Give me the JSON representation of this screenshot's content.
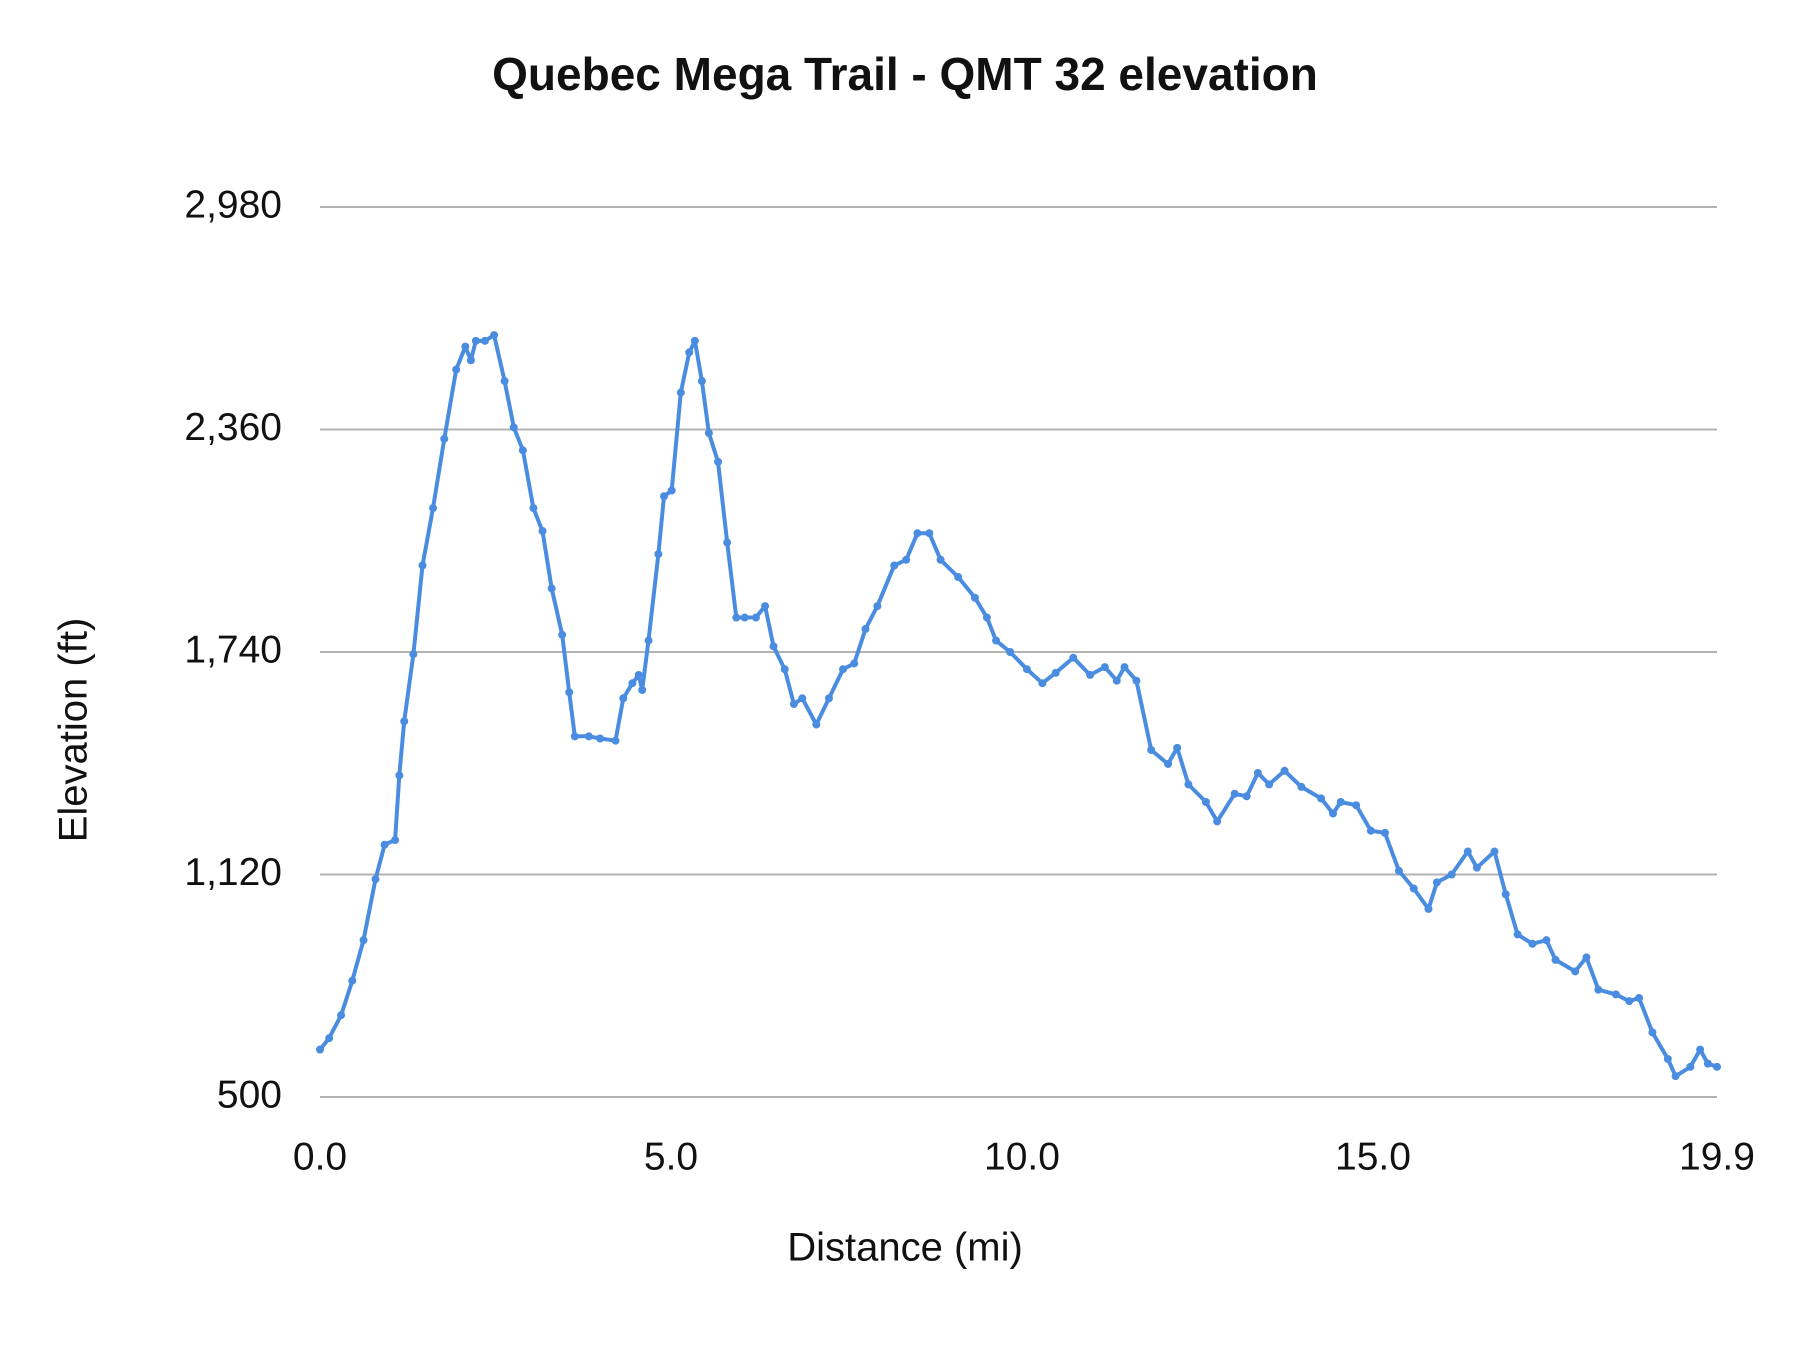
{
  "chart_data": {
    "type": "line",
    "title": "Quebec Mega Trail - QMT 32 elevation",
    "x_label": "Distance (mi)",
    "y_label": "Elevation (ft)",
    "color": "#4a8de0",
    "grid": true,
    "markers": true,
    "xlim": [
      0,
      19.9
    ],
    "ylim": [
      500,
      2980
    ],
    "xticks": [
      {
        "value": 0,
        "label": "0.0"
      },
      {
        "value": 5,
        "label": "5.0"
      },
      {
        "value": 10,
        "label": "10.0"
      },
      {
        "value": 15,
        "label": "15.0"
      },
      19.9
    ],
    "yticks": [
      500,
      {
        "value": 1120,
        "label": "1,120"
      },
      {
        "value": 1740,
        "label": "1,740"
      },
      {
        "value": 2360,
        "label": "2,360"
      },
      {
        "value": 2980,
        "label": "2,980"
      }
    ],
    "x": [
      0,
      0.13,
      0.3,
      0.46,
      0.62,
      0.79,
      0.92,
      1.07,
      1.13,
      1.2,
      1.33,
      1.46,
      1.61,
      1.77,
      1.94,
      2.07,
      2.15,
      2.22,
      2.35,
      2.48,
      2.63,
      2.76,
      2.89,
      3.04,
      3.17,
      3.3,
      3.45,
      3.55,
      3.63,
      3.83,
      3.99,
      4.21,
      4.32,
      4.45,
      4.54,
      4.59,
      4.68,
      4.82,
      4.9,
      5.01,
      5.14,
      5.26,
      5.34,
      5.44,
      5.54,
      5.67,
      5.8,
      5.93,
      6.05,
      6.21,
      6.34,
      6.46,
      6.62,
      6.75,
      6.87,
      7.07,
      7.25,
      7.45,
      7.61,
      7.77,
      7.94,
      8.18,
      8.35,
      8.51,
      8.68,
      8.84,
      9.09,
      9.33,
      9.5,
      9.63,
      9.83,
      10.07,
      10.29,
      10.48,
      10.73,
      10.97,
      11.18,
      11.35,
      11.46,
      11.63,
      11.84,
      12.08,
      12.21,
      12.37,
      12.62,
      12.78,
      13.03,
      13.2,
      13.36,
      13.52,
      13.74,
      13.98,
      14.26,
      14.43,
      14.54,
      14.76,
      14.97,
      15.17,
      15.37,
      15.58,
      15.79,
      15.91,
      16.12,
      16.35,
      16.48,
      16.73,
      16.89,
      17.06,
      17.27,
      17.47,
      17.6,
      17.88,
      18.04,
      18.21,
      18.46,
      18.65,
      18.79,
      18.98,
      19.2,
      19.31,
      19.52,
      19.66,
      19.77,
      19.9
    ],
    "values": [
      632,
      664,
      728,
      824,
      937,
      1107,
      1203,
      1216,
      1396,
      1547,
      1734,
      1981,
      2141,
      2334,
      2527,
      2591,
      2553,
      2607,
      2607,
      2623,
      2495,
      2366,
      2302,
      2141,
      2077,
      1917,
      1788,
      1628,
      1505,
      1505,
      1499,
      1493,
      1611,
      1653,
      1676,
      1634,
      1772,
      2013,
      2174,
      2190,
      2463,
      2575,
      2607,
      2495,
      2350,
      2270,
      2045,
      1836,
      1836,
      1836,
      1868,
      1756,
      1692,
      1595,
      1611,
      1538,
      1611,
      1692,
      1708,
      1804,
      1868,
      1981,
      1997,
      2071,
      2071,
      1997,
      1949,
      1891,
      1836,
      1772,
      1740,
      1692,
      1653,
      1682,
      1724,
      1676,
      1698,
      1660,
      1698,
      1660,
      1467,
      1428,
      1473,
      1371,
      1322,
      1268,
      1345,
      1338,
      1403,
      1371,
      1409,
      1364,
      1332,
      1290,
      1322,
      1313,
      1242,
      1236,
      1130,
      1081,
      1024,
      1098,
      1120,
      1184,
      1139,
      1184,
      1065,
      953,
      927,
      937,
      882,
      850,
      889,
      799,
      786,
      767,
      776,
      680,
      606,
      558,
      584,
      632,
      593,
      584
    ]
  }
}
